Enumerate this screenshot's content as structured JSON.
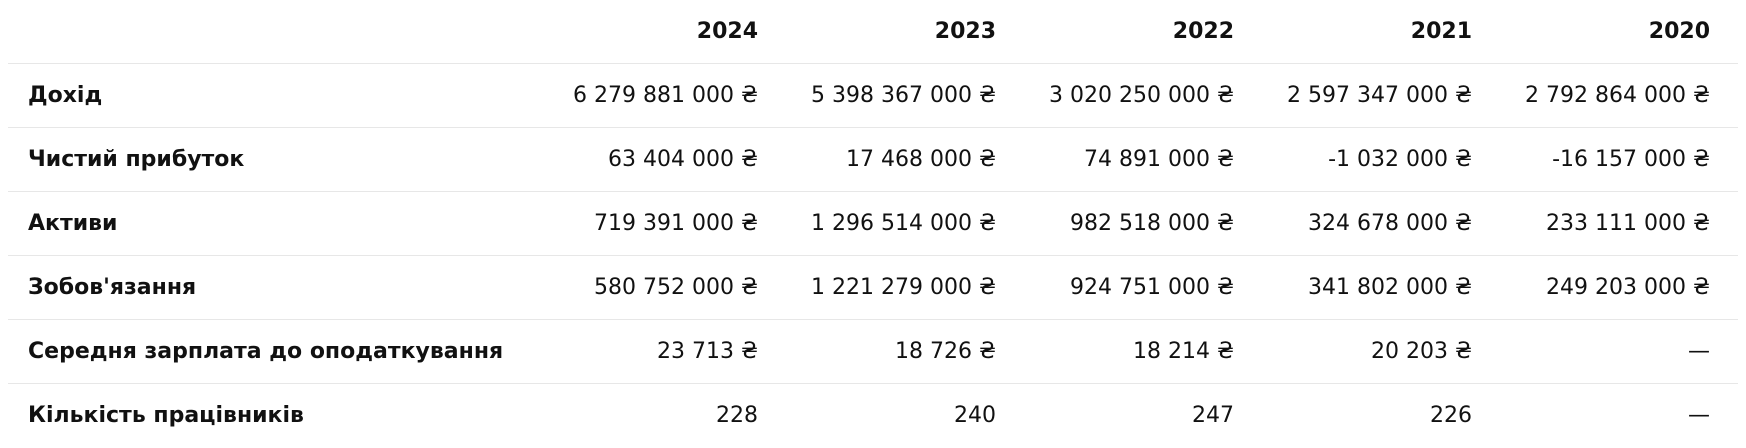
{
  "years": [
    "2024",
    "2023",
    "2022",
    "2021",
    "2020"
  ],
  "rows": [
    {
      "label": "Дохід",
      "values": [
        "6 279 881 000 ₴",
        "5 398 367 000 ₴",
        "3 020 250 000 ₴",
        "2 597 347 000 ₴",
        "2 792 864 000 ₴"
      ]
    },
    {
      "label": "Чистий прибуток",
      "values": [
        "63 404 000 ₴",
        "17 468 000 ₴",
        "74 891 000 ₴",
        "-1 032 000 ₴",
        "-16 157 000 ₴"
      ]
    },
    {
      "label": "Активи",
      "values": [
        "719 391 000 ₴",
        "1 296 514 000 ₴",
        "982 518 000 ₴",
        "324 678 000 ₴",
        "233 111 000 ₴"
      ]
    },
    {
      "label": "Зобов'язання",
      "values": [
        "580 752 000 ₴",
        "1 221 279 000 ₴",
        "924 751 000 ₴",
        "341 802 000 ₴",
        "249 203 000 ₴"
      ]
    },
    {
      "label": "Середня зарплата до оподаткування",
      "values": [
        "23 713 ₴",
        "18 726 ₴",
        "18 214 ₴",
        "20 203 ₴",
        "—"
      ]
    },
    {
      "label": "Кількість працівників",
      "values": [
        "228",
        "240",
        "247",
        "226",
        "—"
      ]
    }
  ]
}
